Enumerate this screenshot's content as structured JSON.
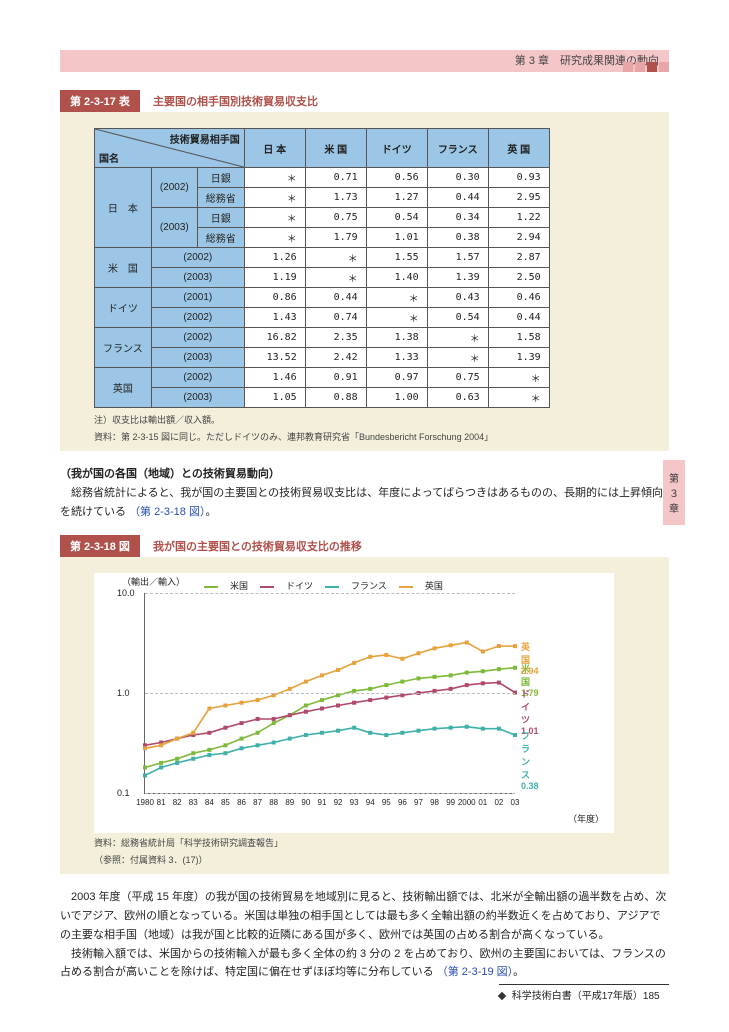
{
  "header": {
    "chapter": "第 3 章　研究成果関連の動向",
    "side_tab": "第３章",
    "top_deco_colors": [
      "#e8a5a8",
      "#e8a5a8",
      "#b0514c",
      "#e8a5a8"
    ]
  },
  "panel_colors": {
    "panel_bg": "#f3efdb",
    "label_bg": "#b0514c",
    "table_header_bg": "#9cc6e6"
  },
  "table_fig": {
    "label": "第 2-3-17 表",
    "title": "主要国の相手国別技術貿易収支比",
    "corner_top": "技術貿易相手国",
    "corner_bottom": "国名",
    "col_headers": [
      "日 本",
      "米 国",
      "ドイツ",
      "フランス",
      "英 国"
    ],
    "rows": [
      {
        "country": "日　本",
        "year": "(2002)",
        "sub": "日銀",
        "cells": [
          "＊",
          "0.71",
          "0.56",
          "0.30",
          "0.93"
        ]
      },
      {
        "country": "",
        "year": "",
        "sub": "総務省",
        "cells": [
          "＊",
          "1.73",
          "1.27",
          "0.44",
          "2.95"
        ]
      },
      {
        "country": "",
        "year": "(2003)",
        "sub": "日銀",
        "cells": [
          "＊",
          "0.75",
          "0.54",
          "0.34",
          "1.22"
        ]
      },
      {
        "country": "",
        "year": "",
        "sub": "総務省",
        "cells": [
          "＊",
          "1.79",
          "1.01",
          "0.38",
          "2.94"
        ]
      },
      {
        "country": "米　国",
        "year": "(2002)",
        "sub": "",
        "cells": [
          "1.26",
          "＊",
          "1.55",
          "1.57",
          "2.87"
        ]
      },
      {
        "country": "",
        "year": "(2003)",
        "sub": "",
        "cells": [
          "1.19",
          "＊",
          "1.40",
          "1.39",
          "2.50"
        ]
      },
      {
        "country": "ドイツ",
        "year": "(2001)",
        "sub": "",
        "cells": [
          "0.86",
          "0.44",
          "＊",
          "0.43",
          "0.46"
        ]
      },
      {
        "country": "",
        "year": "(2002)",
        "sub": "",
        "cells": [
          "1.43",
          "0.74",
          "＊",
          "0.54",
          "0.44"
        ]
      },
      {
        "country": "フランス",
        "year": "(2002)",
        "sub": "",
        "cells": [
          "16.82",
          "2.35",
          "1.38",
          "＊",
          "1.58"
        ]
      },
      {
        "country": "",
        "year": "(2003)",
        "sub": "",
        "cells": [
          "13.52",
          "2.42",
          "1.33",
          "＊",
          "1.39"
        ]
      },
      {
        "country": "英国",
        "year": "(2002)",
        "sub": "",
        "cells": [
          "1.46",
          "0.91",
          "0.97",
          "0.75",
          "＊"
        ]
      },
      {
        "country": "",
        "year": "(2003)",
        "sub": "",
        "cells": [
          "1.05",
          "0.88",
          "1.00",
          "0.63",
          "＊"
        ]
      }
    ],
    "note_line1": "注）収支比は輸出額／収入額。",
    "note_line2": "資料：第 2-3-15 図に同じ。ただしドイツのみ、連邦教育研究省「Bundesbericht Forschung 2004」"
  },
  "para1_heading": "（我が国の各国（地域）との技術貿易動向）",
  "para1_body": "総務省統計によると、我が国の主要国との技術貿易収支比は、年度によってばらつきはあるものの、長期的には上昇傾向を続けている",
  "para1_ref": "（第 2-3-18 図）",
  "chart_fig": {
    "label": "第 2-3-18 図",
    "title": "我が国の主要国との技術貿易収支比の推移",
    "type": "line",
    "y_axis_label": "（輸出／輸入）",
    "x_axis_label": "（年度）",
    "y_scale": "log",
    "ylim": [
      0.1,
      10.0
    ],
    "y_ticks": [
      0.1,
      1.0,
      10.0
    ],
    "x_categories": [
      "1980",
      "81",
      "82",
      "83",
      "84",
      "85",
      "86",
      "87",
      "88",
      "89",
      "90",
      "91",
      "92",
      "93",
      "94",
      "95",
      "96",
      "97",
      "98",
      "99",
      "2000",
      "01",
      "02",
      "03"
    ],
    "background_color": "#ffffff",
    "grid_color": "#bbbbbb",
    "font_size": 9,
    "series": [
      {
        "name": "米国",
        "color": "#7fb93a",
        "marker": "square",
        "values": [
          0.18,
          0.2,
          0.22,
          0.25,
          0.27,
          0.3,
          0.35,
          0.4,
          0.5,
          0.6,
          0.75,
          0.85,
          0.95,
          1.05,
          1.1,
          1.2,
          1.3,
          1.4,
          1.45,
          1.5,
          1.6,
          1.65,
          1.73,
          1.79
        ],
        "end_label": "米国 1.79"
      },
      {
        "name": "ドイツ",
        "color": "#b04a6d",
        "marker": "triangle",
        "values": [
          0.3,
          0.32,
          0.35,
          0.38,
          0.4,
          0.45,
          0.5,
          0.55,
          0.55,
          0.6,
          0.65,
          0.7,
          0.75,
          0.8,
          0.85,
          0.9,
          0.95,
          1.0,
          1.05,
          1.1,
          1.2,
          1.25,
          1.27,
          1.01
        ],
        "end_label": "ドイツ 1.01"
      },
      {
        "name": "フランス",
        "color": "#3fb0a8",
        "marker": "circle",
        "values": [
          0.15,
          0.18,
          0.2,
          0.22,
          0.24,
          0.25,
          0.28,
          0.3,
          0.32,
          0.35,
          0.38,
          0.4,
          0.42,
          0.45,
          0.4,
          0.38,
          0.4,
          0.42,
          0.44,
          0.45,
          0.46,
          0.44,
          0.44,
          0.38
        ],
        "end_label": "フランス 0.38"
      },
      {
        "name": "英国",
        "color": "#e6a23c",
        "marker": "diamond",
        "values": [
          0.28,
          0.3,
          0.35,
          0.4,
          0.7,
          0.75,
          0.8,
          0.85,
          0.95,
          1.1,
          1.3,
          1.5,
          1.7,
          2.0,
          2.3,
          2.4,
          2.2,
          2.5,
          2.8,
          3.0,
          3.2,
          2.6,
          2.95,
          2.94
        ],
        "end_label": "英国 2.94"
      }
    ],
    "source_line1": "資料：総務省統計局「科学技術研究調査報告」",
    "source_line2": "（参照：付属資料 3．(17)）"
  },
  "para2_a": "2003 年度（平成 15 年度）の我が国の技術貿易を地域別に見ると、技術輸出額では、北米が全輸出額の過半数を占め、次いでアジア、欧州の順となっている。米国は単独の相手国としては最も多く全輸出額の約半数近くを占めており、アジアでの主要な相手国（地域）は我が国と比較的近隣にある国が多く、欧州では英国の占める割合が高くなっている。",
  "para2_b": "技術輸入額では、米国からの技術輸入が最も多く全体の約 3 分の 2 を占めており、欧州の主要国においては、フランスの占める割合が高いことを除けば、特定国に偏在せずほぼ均等に分布している",
  "para2_ref": "（第 2-3-19 図）",
  "footer": {
    "text": "科学技術白書（平成17年版）185"
  }
}
